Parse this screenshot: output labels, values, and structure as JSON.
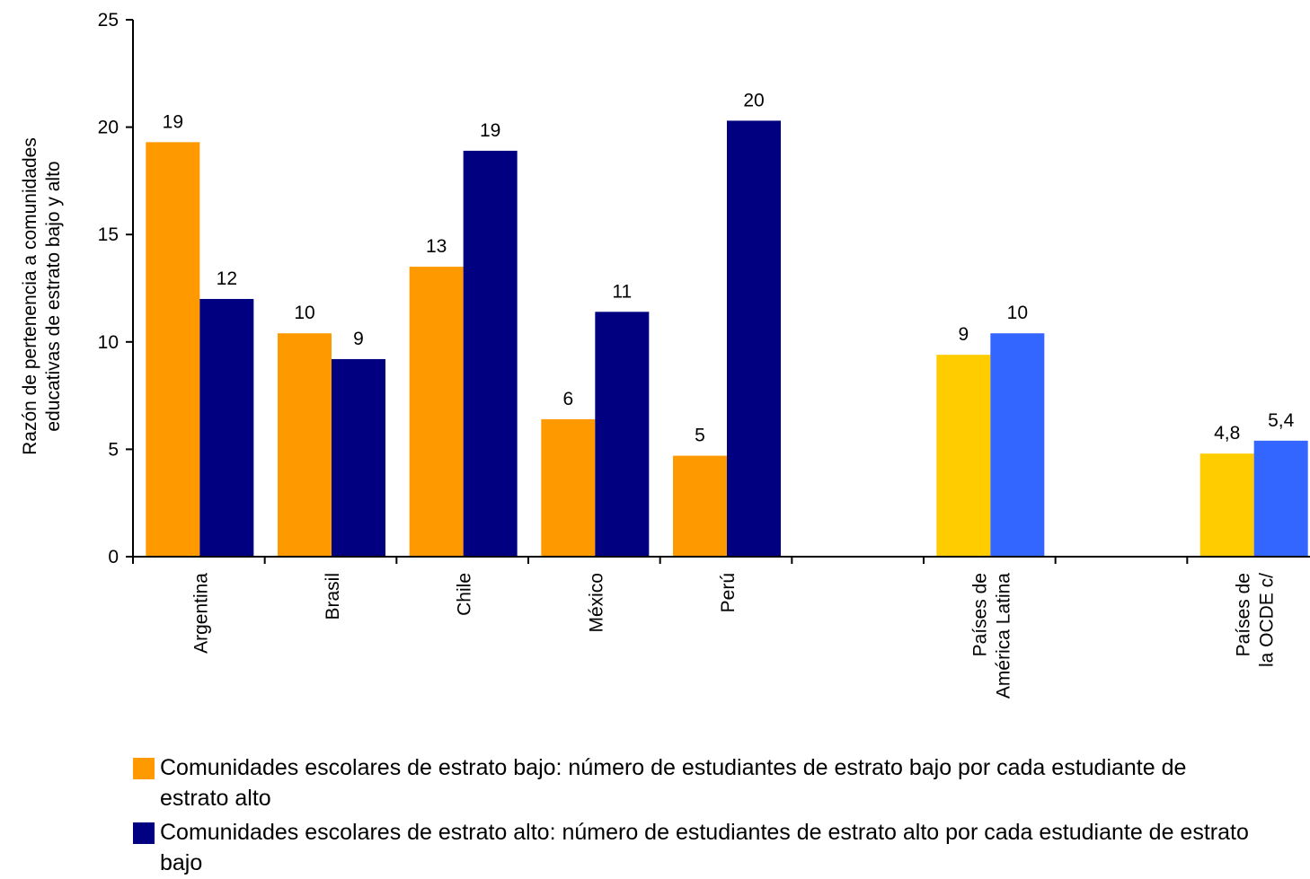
{
  "chart_data": {
    "type": "bar",
    "ylabel": "Razón de pertenencia a comunidades educativas de estrato bajo y alto",
    "ylim": [
      0,
      25
    ],
    "yticks": [
      "0",
      "5",
      "10",
      "15",
      "20",
      "25"
    ],
    "groups": [
      {
        "category": "Argentina",
        "values": [
          19.3,
          12.0
        ],
        "labels": [
          "19",
          "12"
        ],
        "colors": [
          "#ff9900",
          "#000080"
        ]
      },
      {
        "category": "Brasil",
        "values": [
          10.4,
          9.2
        ],
        "labels": [
          "10",
          "9"
        ],
        "colors": [
          "#ff9900",
          "#000080"
        ]
      },
      {
        "category": "Chile",
        "values": [
          13.5,
          18.9
        ],
        "labels": [
          "13",
          "19"
        ],
        "colors": [
          "#ff9900",
          "#000080"
        ]
      },
      {
        "category": "México",
        "values": [
          6.4,
          11.4
        ],
        "labels": [
          "6",
          "11"
        ],
        "colors": [
          "#ff9900",
          "#000080"
        ]
      },
      {
        "category": "Perú",
        "values": [
          4.7,
          20.3
        ],
        "labels": [
          "5",
          "20"
        ],
        "colors": [
          "#ff9900",
          "#000080"
        ]
      },
      {
        "category": "",
        "values": [],
        "labels": [],
        "colors": []
      },
      {
        "category": "Países de América Latina",
        "values": [
          9.4,
          10.4
        ],
        "labels": [
          "9",
          "10"
        ],
        "colors": [
          "#ffcc00",
          "#3366ff"
        ]
      },
      {
        "category": "",
        "values": [],
        "labels": [],
        "colors": []
      },
      {
        "category": "Países de la OCDE c/",
        "values": [
          4.8,
          5.4
        ],
        "labels": [
          "4,8",
          "5,4"
        ],
        "colors": [
          "#ffcc00",
          "#3366ff"
        ]
      }
    ],
    "series": [
      {
        "name": "Comunidades escolares de estrato bajo: número de estudiantes de estrato bajo por cada estudiante de estrato alto",
        "color": "#ff9900"
      },
      {
        "name": "Comunidades escolares de estrato alto: número de estudiantes de estrato alto por cada estudiante de estrato bajo",
        "color": "#000080"
      }
    ],
    "legend_position": "bottom",
    "grid": false
  }
}
